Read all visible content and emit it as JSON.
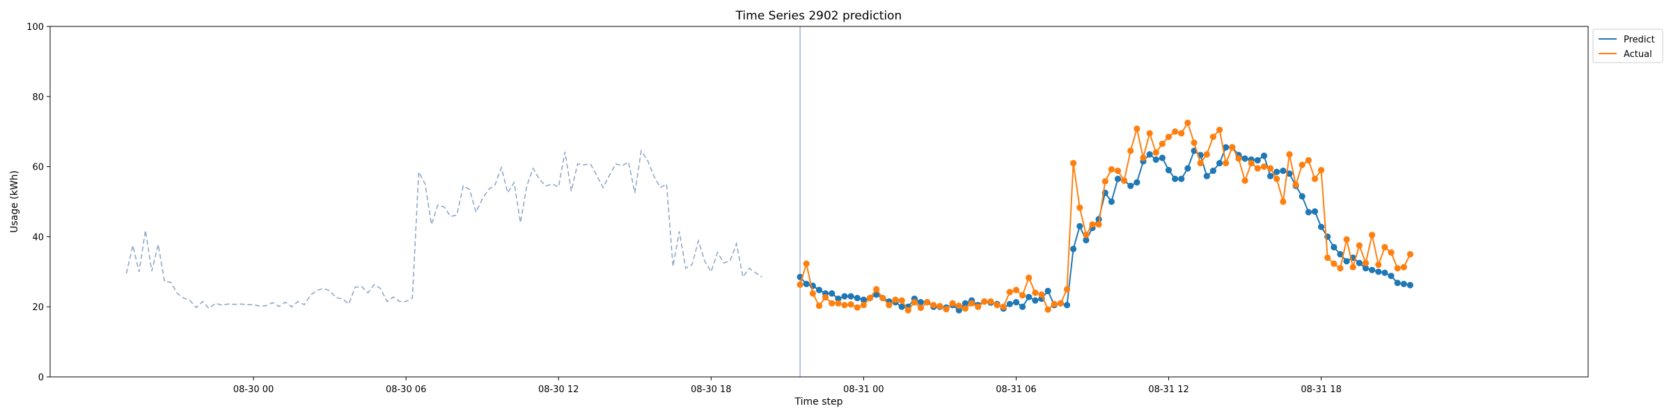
{
  "chart_data": {
    "type": "line",
    "title": "Time Series 2902 prediction",
    "xlabel": "Time step",
    "ylabel": "Usage (kWh)",
    "ylim": [
      0,
      100
    ],
    "xlim": [
      "2024-08-29 16:00",
      "2024-09-01 04:30"
    ],
    "x_tick_labels": [
      "08-30 00",
      "08-30 06",
      "08-30 12",
      "08-30 18",
      "08-31 00",
      "08-31 06",
      "08-31 12",
      "08-31 18"
    ],
    "x_tick_times": [
      "2024-08-30 00:00",
      "2024-08-30 06:00",
      "2024-08-30 12:00",
      "2024-08-30 18:00",
      "2024-08-31 00:00",
      "2024-08-31 06:00",
      "2024-08-31 12:00",
      "2024-08-31 18:00"
    ],
    "y_ticks": [
      0,
      20,
      40,
      60,
      80,
      100
    ],
    "grid": false,
    "legend_position": "top-right (outside plot)",
    "forecast_start": "2024-08-30 21:30",
    "interval_minutes": 15,
    "history": {
      "start": "2024-08-29 19:00",
      "color": "#8fa8c8",
      "style": "dashed",
      "values": [
        29.5,
        37.5,
        30,
        41.8,
        30.2,
        37.8,
        27.2,
        27,
        23.8,
        22.5,
        21.8,
        19.8,
        21.5,
        19.5,
        21,
        20.5,
        20.8,
        20.7,
        20.8,
        20.6,
        20.6,
        20.2,
        20.3,
        21.2,
        20.1,
        21.3,
        20,
        21.5,
        20.6,
        23.4,
        24.7,
        25.2,
        24.6,
        22.6,
        22.3,
        20.8,
        25.6,
        25.8,
        24,
        26.3,
        25.2,
        21.5,
        22.8,
        21.5,
        21.5,
        22.5,
        58.5,
        55,
        43.5,
        49,
        48.5,
        45.8,
        46.2,
        54.5,
        53.5,
        47,
        50.8,
        53.5,
        54.8,
        59.7,
        52.5,
        55.5,
        44,
        54.5,
        59.5,
        56.3,
        54.5,
        55,
        54.2,
        64.2,
        53,
        60.8,
        60.5,
        60.8,
        57.5,
        54,
        57.5,
        60.8,
        60.2,
        61.3,
        52.5,
        64.5,
        61.8,
        57.3,
        54,
        55,
        31.5,
        41.5,
        31,
        32,
        38.8,
        33,
        30,
        35.5,
        32.5,
        33.2,
        38,
        28.5,
        31,
        29.7,
        28.5
      ]
    },
    "series": [
      {
        "name": "Predict",
        "color": "#1f77b4",
        "start": "2024-08-30 21:30",
        "values": [
          28.5,
          26.5,
          26,
          24.8,
          23.8,
          23.8,
          22.3,
          23,
          23,
          22.5,
          22,
          22.5,
          23.5,
          22.5,
          21.5,
          21.3,
          20,
          20,
          22.3,
          21.3,
          21.3,
          20,
          20,
          19.8,
          20.5,
          19,
          21,
          21.8,
          20.5,
          21.5,
          21.2,
          20.8,
          19.5,
          20.8,
          21.3,
          20,
          22.8,
          21.8,
          22.3,
          24.5,
          20.5,
          21,
          20.5,
          36.5,
          43,
          39,
          42.5,
          45,
          52.5,
          50,
          56.5,
          56,
          54.5,
          55.5,
          61.5,
          63.5,
          62,
          62.5,
          59,
          56.5,
          56.5,
          59.5,
          64.5,
          63.3,
          57.3,
          58.8,
          61,
          65.5,
          65.5,
          63.3,
          62.3,
          62,
          61.8,
          63.1,
          57.3,
          58.5,
          58.8,
          58,
          54.5,
          51.5,
          47,
          47.2,
          42.8,
          40,
          37,
          35,
          33,
          34,
          32.5,
          31,
          30.5,
          30,
          29.7,
          28.8,
          26.8,
          26.5,
          26.2
        ]
      },
      {
        "name": "Actual",
        "color": "#ff7f0e",
        "start": "2024-08-30 21:30",
        "values": [
          26.3,
          32.3,
          23.8,
          20.3,
          22.7,
          21,
          21,
          20.5,
          20.7,
          19.8,
          20.5,
          22.5,
          25,
          22.5,
          20.5,
          22,
          21.8,
          19,
          21.3,
          19.7,
          21.3,
          20.5,
          20.2,
          19.3,
          21,
          20.3,
          19.5,
          21,
          20,
          21.5,
          21.5,
          20.5,
          20,
          24.2,
          24.8,
          23.3,
          28.3,
          24,
          23.5,
          19.2,
          20.8,
          21,
          25,
          61,
          48.3,
          40.5,
          43.5,
          43.5,
          55.8,
          59.2,
          58.8,
          56,
          64.5,
          70.8,
          62.5,
          69.5,
          64,
          66.5,
          68.5,
          70,
          69.5,
          72.5,
          66.8,
          61,
          63.5,
          68.5,
          70.5,
          61,
          65.5,
          62.3,
          56,
          61,
          59.5,
          60,
          59.5,
          56.5,
          50,
          63.5,
          54.8,
          60.5,
          61.8,
          56.5,
          59,
          34,
          32.3,
          31,
          39.2,
          31.3,
          37.5,
          32.5,
          40.5,
          32,
          37,
          35.5,
          31,
          31.3,
          35
        ]
      }
    ]
  }
}
